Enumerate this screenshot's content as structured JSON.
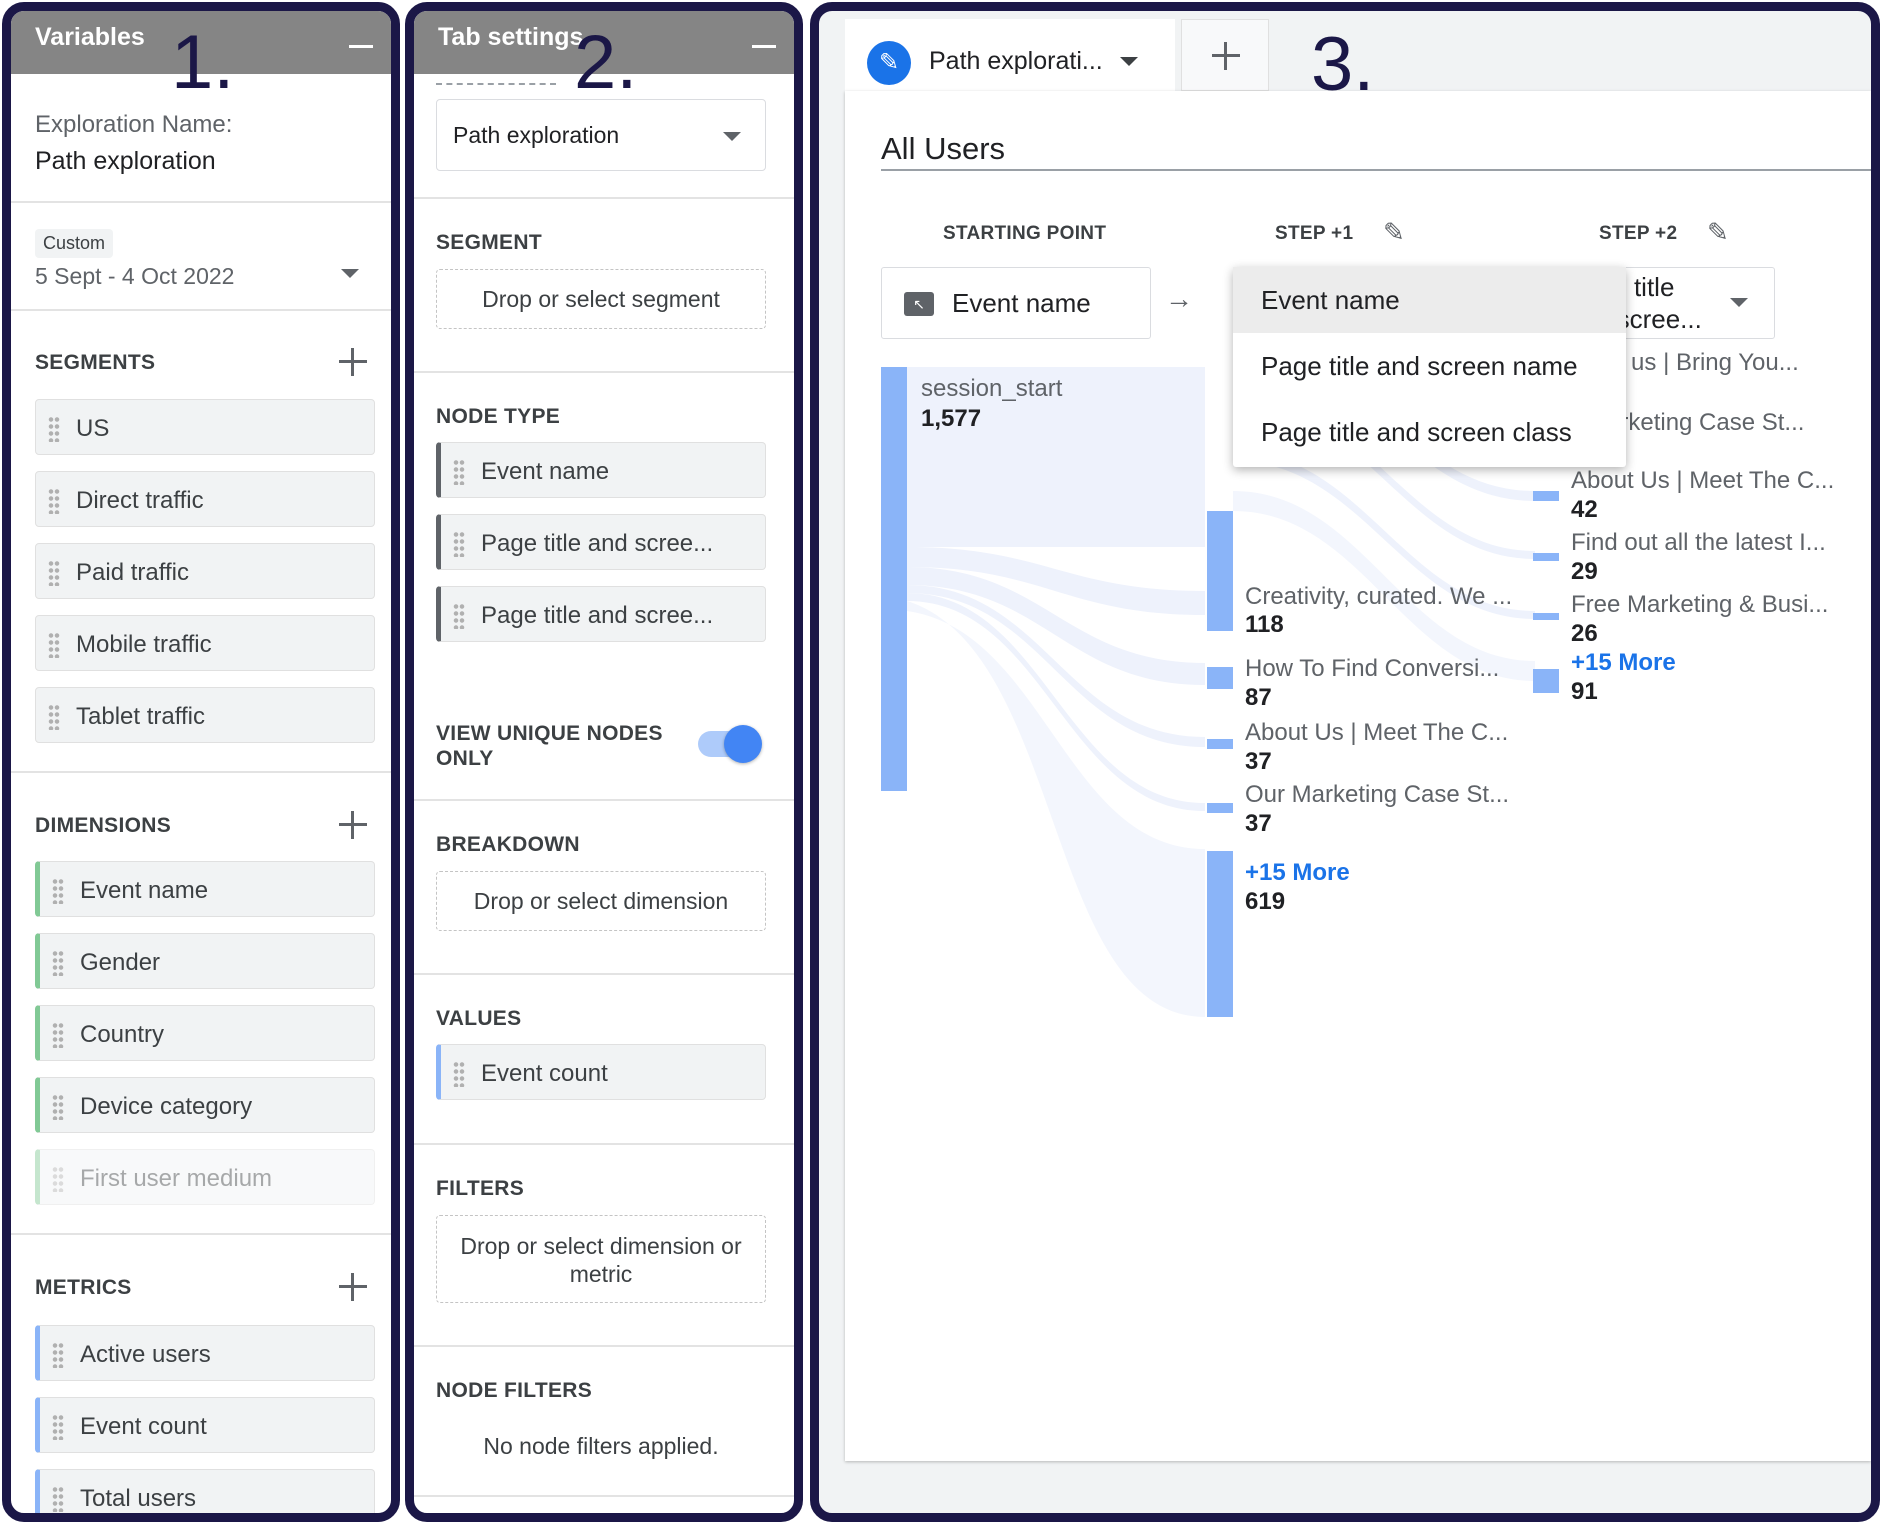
{
  "markers": {
    "one": "1.",
    "two": "2.",
    "three": "3."
  },
  "variables": {
    "title": "Variables",
    "exploration_name_label": "Exploration Name:",
    "exploration_name": "Path exploration",
    "date_badge": "Custom",
    "date_range": "5 Sept - 4 Oct 2022",
    "segments_label": "SEGMENTS",
    "segments": [
      "US",
      "Direct traffic",
      "Paid traffic",
      "Mobile traffic",
      "Tablet traffic"
    ],
    "dimensions_label": "DIMENSIONS",
    "dimensions": [
      "Event name",
      "Gender",
      "Country",
      "Device category",
      "First user medium"
    ],
    "metrics_label": "METRICS",
    "metrics": [
      "Active users",
      "Event count",
      "Total users"
    ]
  },
  "tab_settings": {
    "title": "Tab settings",
    "technique": "Path exploration",
    "segment_label": "SEGMENT",
    "segment_drop": "Drop or select segment",
    "node_type_label": "NODE TYPE",
    "node_types": [
      "Event name",
      "Page title and scree...",
      "Page title and scree..."
    ],
    "unique_nodes_label_1": "VIEW UNIQUE NODES",
    "unique_nodes_label_2": "ONLY",
    "unique_nodes_on": true,
    "breakdown_label": "BREAKDOWN",
    "breakdown_drop": "Drop or select dimension",
    "values_label": "VALUES",
    "value": "Event count",
    "filters_label": "FILTERS",
    "filters_drop_1": "Drop or select dimension or",
    "filters_drop_2": "metric",
    "node_filters_label": "NODE FILTERS",
    "node_filters_empty": "No node filters applied."
  },
  "canvas": {
    "tab_label": "Path explorati...",
    "segment_title": "All Users",
    "col_start": "STARTING POINT",
    "col_step1": "STEP +1",
    "col_step2": "STEP +2",
    "start_selector": "Event name",
    "step2_selector_1": "Page title",
    "step2_selector_2": "and scree...",
    "start_node": {
      "label": "session_start",
      "count": "1,577"
    },
    "step1_nodes": [
      {
        "label": "Creativity, curated. We ...",
        "count": "118"
      },
      {
        "label": "How To Find Conversi...",
        "count": "87"
      },
      {
        "label": "About Us | Meet The C...",
        "count": "37"
      },
      {
        "label": "Our Marketing Case St...",
        "count": "37"
      },
      {
        "label": "+15 More",
        "count": "619"
      }
    ],
    "step2_nodes": [
      {
        "label": "ontact us | Bring You...",
        "count": ""
      },
      {
        "label": "ur Marketing Case St...",
        "count": ""
      },
      {
        "label": "About Us | Meet The C...",
        "count": "42"
      },
      {
        "label": "Find out all the latest I...",
        "count": "29"
      },
      {
        "label": "Free Marketing & Busi...",
        "count": "26"
      },
      {
        "label": "+15 More",
        "count": "91"
      }
    ],
    "dropdown_options": [
      "Event name",
      "Page title and screen name",
      "Page title and screen class"
    ]
  },
  "colors": {
    "node_bar": "#8ab4f8",
    "flow": "#e8eefb",
    "accent": "#1a73e8",
    "frame": "#1b1747"
  }
}
